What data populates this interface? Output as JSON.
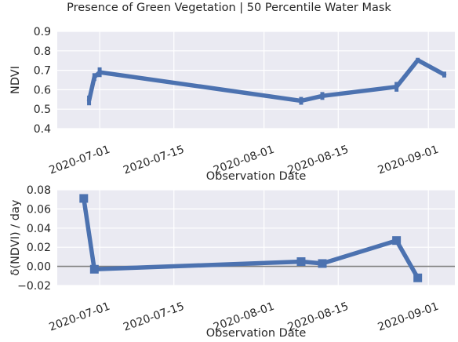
{
  "figure": {
    "title": "Presence of Green Vegetation | 50 Percentile Water Mask"
  },
  "chart_data": [
    {
      "type": "line",
      "xlabel": "Observation Date",
      "ylabel": "NDVI",
      "ylim": [
        0.4,
        0.9
      ],
      "yticks": [
        0.4,
        0.5,
        0.6,
        0.7,
        0.8,
        0.9
      ],
      "ytick_labels": [
        "0.4",
        "0.5",
        "0.6",
        "0.7",
        "0.8",
        "0.9"
      ],
      "xlim": [
        "2020-06-23",
        "2020-09-06"
      ],
      "xticks": [
        "2020-07-01",
        "2020-07-15",
        "2020-08-01",
        "2020-08-15",
        "2020-09-01"
      ],
      "grid": true,
      "color": "#4c72b0",
      "x": [
        "2020-06-29",
        "2020-06-30",
        "2020-07-01",
        "2020-08-08",
        "2020-08-12",
        "2020-08-26",
        "2020-08-30",
        "2020-09-04"
      ],
      "y": [
        0.545,
        0.665,
        0.69,
        0.543,
        0.568,
        0.615,
        0.752,
        0.678
      ],
      "error": [
        0.025,
        0.02,
        0.025,
        0.02,
        0.02,
        0.025,
        0.012,
        0.015
      ],
      "point_marker": "errorbar"
    },
    {
      "type": "line",
      "xlabel": "Observation Date",
      "ylabel": "δ(NDVI) / day",
      "ylim": [
        -0.02,
        0.08
      ],
      "yticks": [
        -0.02,
        0.0,
        0.02,
        0.04,
        0.06,
        0.08
      ],
      "ytick_labels": [
        "−0.02",
        "0.00",
        "0.02",
        "0.04",
        "0.06",
        "0.08"
      ],
      "xlim": [
        "2020-06-23",
        "2020-09-06"
      ],
      "xticks": [
        "2020-07-01",
        "2020-07-15",
        "2020-08-01",
        "2020-08-15",
        "2020-09-01"
      ],
      "grid": true,
      "zero_line": true,
      "color": "#4c72b0",
      "zero_line_color": "#808080",
      "x": [
        "2020-06-28",
        "2020-06-30",
        "2020-08-08",
        "2020-08-12",
        "2020-08-26",
        "2020-08-30"
      ],
      "y": [
        0.071,
        -0.003,
        0.005,
        0.003,
        0.027,
        -0.012
      ],
      "point_marker": "square"
    }
  ]
}
